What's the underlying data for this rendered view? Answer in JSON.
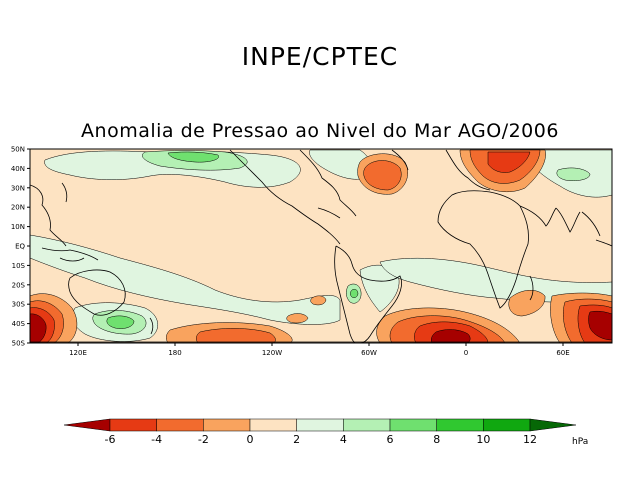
{
  "header": {
    "title": "INPE/CPTEC"
  },
  "map": {
    "title": "Anomalia de Pressao ao Nivel do Mar AGO/2006",
    "lat_labels": [
      "50N",
      "40N",
      "30N",
      "20N",
      "10N",
      "EQ",
      "10S",
      "20S",
      "30S",
      "40S",
      "50S"
    ],
    "lon_labels": [
      "120E",
      "180",
      "120W",
      "60W",
      "0",
      "60E"
    ]
  },
  "colorbar": {
    "labels": [
      "-6",
      "-4",
      "-2",
      "0",
      "2",
      "4",
      "6",
      "8",
      "10",
      "12"
    ],
    "unit": "hPa",
    "colors": [
      "#a60000",
      "#e63a14",
      "#f26b2e",
      "#f9a35e",
      "#fde3c2",
      "#e0f5e0",
      "#b4f0b4",
      "#6fe06f",
      "#30c830",
      "#10a810",
      "#0a8a0a",
      "#066806"
    ]
  },
  "colors": {
    "neutral": "#fde3c2",
    "coast": "#000000"
  }
}
